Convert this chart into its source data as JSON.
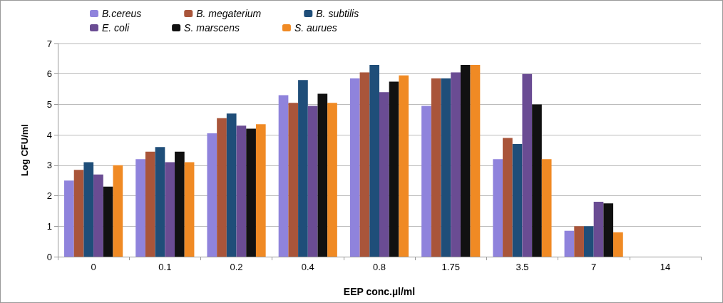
{
  "chart_data": {
    "type": "bar",
    "xlabel": "EEP conc.µl/ml",
    "ylabel": "Log CFU/ml",
    "categories": [
      "0",
      "0.1",
      "0.2",
      "0.4",
      "0.8",
      "1.75",
      "3.5",
      "7",
      "14"
    ],
    "series": [
      {
        "name": "B.cereus",
        "color": "#8f83dc",
        "values": [
          2.5,
          3.2,
          4.05,
          5.3,
          5.85,
          4.95,
          3.2,
          0.85,
          null
        ]
      },
      {
        "name": "B. megaterium",
        "color": "#a9553a",
        "values": [
          2.85,
          3.45,
          4.55,
          5.05,
          6.05,
          5.85,
          3.9,
          1.0,
          null
        ]
      },
      {
        "name": "B. subtilis",
        "color": "#1f4e79",
        "values": [
          3.1,
          3.6,
          4.7,
          5.8,
          6.3,
          5.85,
          3.7,
          1.0,
          null
        ]
      },
      {
        "name": "E. coli",
        "color": "#6a4c93",
        "values": [
          2.7,
          3.1,
          4.3,
          4.95,
          5.4,
          6.05,
          6.0,
          1.8,
          null
        ]
      },
      {
        "name": "S. marscens",
        "color": "#111111",
        "values": [
          2.3,
          3.45,
          4.2,
          5.35,
          5.75,
          6.3,
          5.0,
          1.75,
          null
        ]
      },
      {
        "name": "S. aurues",
        "color": "#f08a24",
        "values": [
          3.0,
          3.1,
          4.35,
          5.05,
          5.95,
          6.3,
          3.2,
          0.8,
          null
        ]
      }
    ],
    "ylim": [
      0,
      7
    ],
    "yticks": [
      0,
      1,
      2,
      3,
      4,
      5,
      6,
      7
    ],
    "grid": "y",
    "legend": "top"
  }
}
